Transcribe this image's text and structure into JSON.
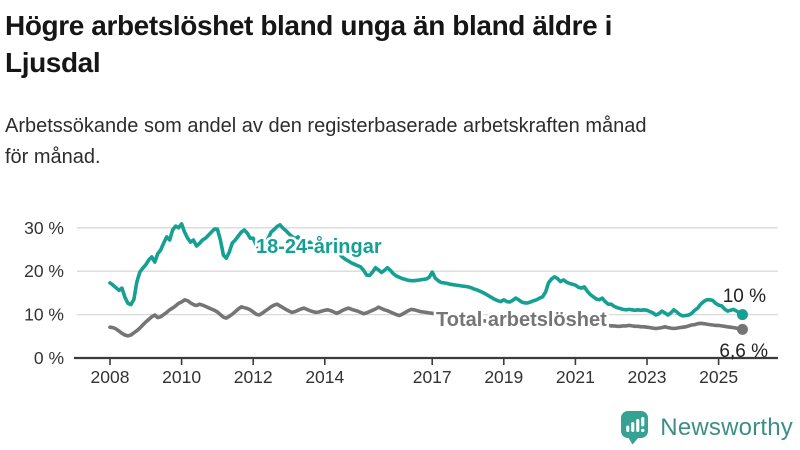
{
  "header": {
    "title": "Högre arbetslöshet bland unga än bland äldre i\nLjusdal",
    "subtitle": "Arbetssökande som andel av den registerbaserade arbetskraften månad\nför månad."
  },
  "chart_data": {
    "type": "line",
    "unit": "%",
    "x_interval": "monthly",
    "x_start_year": 2008,
    "x_end": "2025-09",
    "x_ticks": [
      2008,
      2010,
      2012,
      2014,
      2017,
      2019,
      2021,
      2023,
      2025
    ],
    "y_ticks": [
      0,
      10,
      20,
      30
    ],
    "y_tick_labels": [
      "0 %",
      "10 %",
      "20 %",
      "30 %"
    ],
    "ylim": [
      0,
      33
    ],
    "grid": "horizontal",
    "legend_position": "inline-labels",
    "colors": {
      "grid": "#d9d9d9",
      "axis": "#3c3c3c",
      "tick_text": "#333333",
      "end_label_text": "#222222"
    },
    "series": [
      {
        "name": "Total arbetslöshet",
        "color": "#757575",
        "end_label": "6,6 %",
        "end_value": 6.6,
        "values": [
          7.1,
          7.0,
          6.7,
          6.2,
          5.7,
          5.3,
          5.1,
          5.3,
          5.8,
          6.3,
          6.9,
          7.6,
          8.3,
          8.9,
          9.5,
          9.9,
          9.3,
          9.5,
          10.0,
          10.5,
          11.1,
          11.5,
          12.0,
          12.6,
          12.9,
          13.4,
          13.2,
          12.7,
          12.3,
          12.1,
          12.4,
          12.2,
          11.9,
          11.6,
          11.3,
          11.0,
          10.6,
          10.0,
          9.4,
          9.2,
          9.6,
          10.1,
          10.7,
          11.3,
          11.8,
          11.6,
          11.4,
          11.1,
          10.6,
          10.1,
          9.9,
          10.3,
          10.8,
          11.3,
          11.8,
          12.2,
          12.4,
          12.0,
          11.6,
          11.2,
          10.8,
          10.5,
          10.7,
          11.0,
          11.3,
          11.5,
          11.2,
          10.9,
          10.7,
          10.5,
          10.6,
          10.8,
          11.0,
          11.1,
          10.9,
          10.6,
          10.3,
          10.6,
          11.0,
          11.3,
          11.5,
          11.2,
          11.0,
          10.8,
          10.5,
          10.2,
          10.4,
          10.7,
          11.0,
          11.3,
          11.7,
          11.4,
          11.1,
          10.9,
          10.6,
          10.3,
          10.0,
          9.8,
          10.1,
          10.5,
          10.9,
          11.2,
          11.1,
          10.9,
          10.7,
          10.6,
          10.5,
          10.4,
          10.3,
          10.2,
          10.1,
          10.0,
          9.9,
          9.8,
          9.8,
          9.7,
          9.6,
          9.5,
          9.4,
          9.3,
          9.2,
          9.1,
          9.0,
          8.8,
          8.7,
          8.6,
          8.5,
          8.4,
          8.3,
          8.2,
          8.1,
          8.1,
          8.1,
          8.0,
          7.9,
          7.9,
          7.9,
          8.0,
          8.0,
          7.9,
          7.9,
          7.9,
          8.0,
          8.1,
          8.2,
          8.4,
          8.8,
          9.3,
          9.6,
          9.8,
          9.9,
          9.8,
          9.6,
          9.5,
          9.3,
          9.2,
          9.1,
          9.0,
          8.8,
          8.6,
          8.4,
          8.2,
          8.0,
          7.9,
          7.7,
          7.6,
          7.5,
          7.5,
          7.4,
          7.4,
          7.3,
          7.3,
          7.4,
          7.4,
          7.5,
          7.4,
          7.3,
          7.3,
          7.2,
          7.2,
          7.1,
          7.0,
          6.9,
          6.8,
          6.9,
          7.0,
          7.2,
          7.0,
          6.9,
          6.8,
          6.9,
          7.0,
          7.1,
          7.2,
          7.4,
          7.6,
          7.7,
          7.9,
          8.0,
          7.9,
          7.8,
          7.7,
          7.6,
          7.5,
          7.5,
          7.4,
          7.3,
          7.2,
          7.1,
          7.0,
          6.9,
          6.7,
          6.6
        ]
      },
      {
        "name": "18-24-åringar",
        "color": "#16a094",
        "end_label": "10 %",
        "end_value": 10.0,
        "values": [
          17.3,
          16.8,
          16.2,
          15.6,
          16.1,
          14.0,
          12.6,
          12.3,
          13.5,
          17.5,
          19.8,
          20.7,
          21.5,
          22.6,
          23.3,
          22.1,
          24.0,
          24.9,
          26.5,
          27.9,
          27.2,
          29.5,
          30.4,
          30.0,
          30.9,
          29.0,
          27.6,
          26.7,
          27.2,
          25.8,
          26.4,
          27.2,
          27.6,
          28.3,
          29.0,
          29.7,
          29.7,
          27.2,
          23.7,
          23.0,
          24.4,
          26.5,
          27.2,
          28.1,
          29.0,
          29.5,
          28.8,
          27.6,
          27.6,
          26.0,
          25.2,
          25.0,
          26.0,
          27.5,
          29.0,
          29.6,
          30.3,
          30.7,
          29.9,
          29.3,
          28.6,
          28.0,
          27.5,
          27.9,
          27.2,
          26.7,
          26.2,
          26.7,
          26.0,
          25.6,
          25.3,
          25.5,
          25.6,
          25.1,
          24.7,
          24.4,
          24.6,
          23.9,
          23.2,
          22.7,
          22.3,
          21.9,
          21.6,
          21.3,
          21.0,
          20.2,
          19.1,
          19.0,
          19.8,
          20.8,
          20.3,
          19.7,
          20.2,
          20.8,
          20.2,
          19.4,
          18.9,
          18.6,
          18.3,
          18.1,
          17.9,
          17.8,
          17.8,
          17.9,
          18.0,
          18.1,
          18.2,
          18.6,
          19.8,
          18.4,
          17.8,
          17.4,
          17.3,
          17.2,
          17.0,
          16.9,
          16.8,
          16.7,
          16.6,
          16.5,
          16.4,
          16.2,
          15.9,
          15.7,
          15.4,
          15.1,
          14.7,
          14.3,
          13.9,
          13.5,
          13.2,
          13.0,
          13.4,
          13.0,
          12.9,
          13.3,
          13.8,
          13.4,
          12.9,
          12.7,
          12.7,
          12.9,
          13.2,
          13.4,
          13.8,
          14.1,
          15.2,
          17.3,
          18.2,
          18.7,
          18.3,
          17.6,
          18.0,
          17.5,
          17.2,
          17.0,
          16.8,
          16.3,
          16.1,
          16.4,
          15.4,
          14.6,
          14.1,
          13.6,
          13.4,
          13.8,
          13.0,
          12.4,
          12.4,
          11.9,
          11.6,
          11.4,
          11.2,
          11.1,
          11.2,
          11.1,
          11.0,
          11.1,
          11.0,
          11.1,
          11.0,
          10.7,
          10.4,
          9.9,
          10.2,
          10.8,
          10.4,
          9.9,
          10.4,
          11.1,
          10.6,
          10.0,
          9.7,
          9.8,
          9.9,
          10.3,
          11.0,
          11.5,
          12.4,
          13.0,
          13.4,
          13.4,
          13.3,
          12.6,
          12.2,
          12.0,
          11.3,
          10.8,
          11.0,
          11.2,
          10.8,
          10.4,
          10.0
        ]
      }
    ]
  },
  "branding": {
    "name": "Newsworthy",
    "logo_icon": "speech-bubble-bar-chart-icon",
    "bubble_color": "#35a294",
    "text_color": "#3d8e88"
  }
}
